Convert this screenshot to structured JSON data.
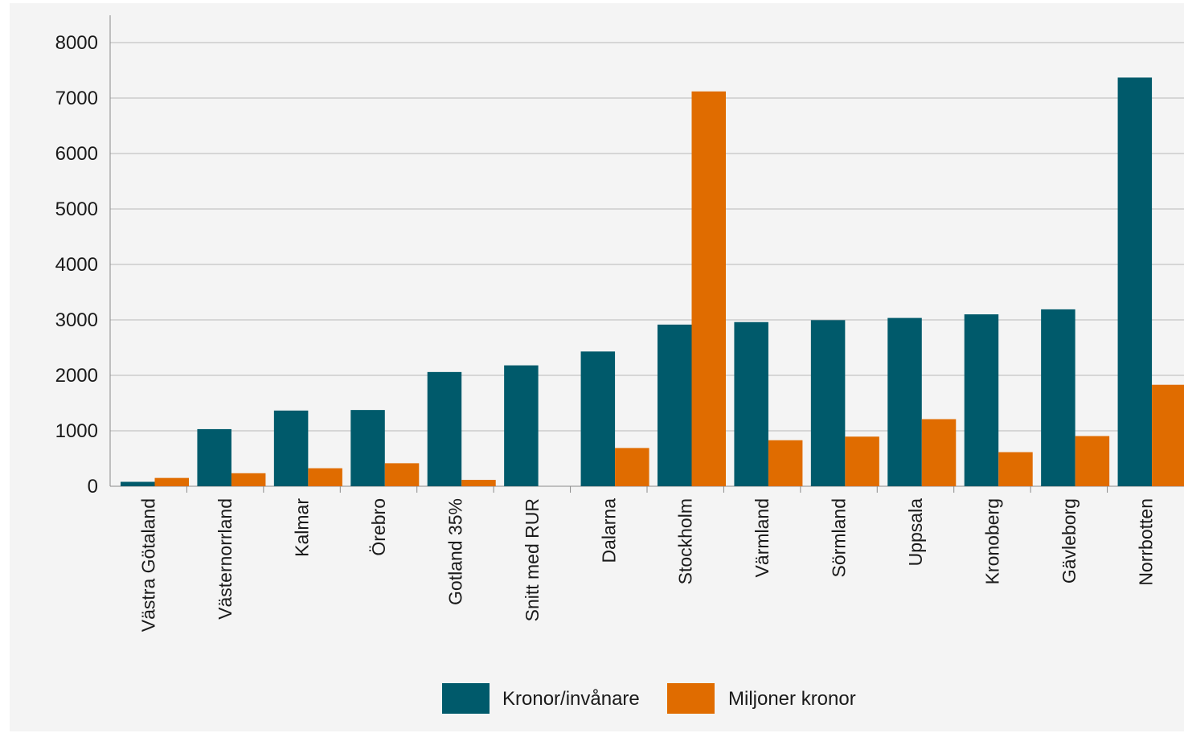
{
  "chart_data": {
    "type": "bar",
    "categories": [
      "Västra Götaland",
      "Västernorrland",
      "Kalmar",
      "Örebro",
      "Gotland 35%",
      "Snitt med RUR",
      "Dalarna",
      "Stockholm",
      "Värmland",
      "Sörmland",
      "Uppsala",
      "Kronoberg",
      "Gävleborg",
      "Norrbotten"
    ],
    "series": [
      {
        "name": "Kronor/invånare",
        "color": "#005a6b",
        "values": [
          80,
          1030,
          1365,
          1375,
          2060,
          2180,
          2430,
          2915,
          2960,
          2995,
          3035,
          3100,
          3190,
          7370
        ]
      },
      {
        "name": "Miljoner kronor",
        "color": "#e06c00",
        "values": [
          150,
          235,
          325,
          415,
          115,
          null,
          690,
          7120,
          830,
          895,
          1210,
          615,
          905,
          1830
        ]
      }
    ],
    "ylim": [
      0,
      8000
    ],
    "yticks": [
      "0",
      "1000",
      "2000",
      "3000",
      "4000",
      "5000",
      "6000",
      "7000",
      "8000"
    ],
    "grid": true,
    "legend_placement": "bottom"
  }
}
